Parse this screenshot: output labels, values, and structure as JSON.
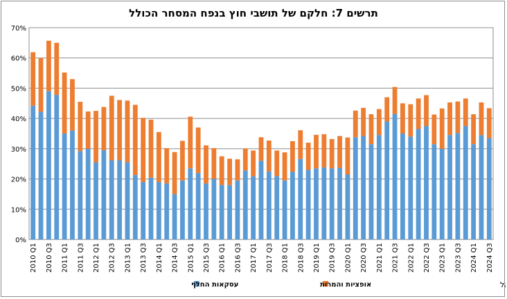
{
  "chart_data": {
    "type": "bar",
    "stacked": true,
    "title": "תרשים 7: חלקם של תושבי חוץ בנפח המסחר הכולל",
    "xlabel": "",
    "ylabel": "",
    "ylim": [
      0,
      70
    ],
    "y_ticks": [
      "0%",
      "10%",
      "20%",
      "30%",
      "40%",
      "50%",
      "60%",
      "70%"
    ],
    "grid": true,
    "legend_position": "bottom",
    "categories": [
      "2010 Q1",
      "2010 Q2",
      "2010 Q3",
      "2010 Q4",
      "2011 Q1",
      "2011 Q2",
      "2011 Q3",
      "2011 Q4",
      "2012 Q1",
      "2012 Q2",
      "2012 Q3",
      "2012 Q4",
      "2013 Q1",
      "2013 Q2",
      "2013 Q3",
      "2013 Q4",
      "2014 Q1",
      "2014 Q2",
      "2014 Q3",
      "2014 Q4",
      "2015 Q1",
      "2015 Q2",
      "2015 Q3",
      "2015 Q4",
      "2016 Q1",
      "2016 Q2",
      "2016 Q3",
      "2016 Q4",
      "2017 Q1",
      "2017 Q2",
      "2017 Q3",
      "2017 Q4",
      "2018 Q1",
      "2018 Q2",
      "2018 Q3",
      "2018 Q4",
      "2019 Q1",
      "2019 Q2",
      "2019 Q3",
      "2019 Q4",
      "2020 Q1",
      "2020 Q2",
      "2020 Q3",
      "2020 Q4",
      "2021 Q1",
      "2021 Q2",
      "2021 Q3",
      "2021 Q4",
      "2022 Q1",
      "2022 Q2",
      "2022 Q3",
      "2022 Q4",
      "2023 Q1",
      "2023 Q2",
      "2023 Q3",
      "2023 Q4",
      "2024 Q1",
      "2024 Q2",
      "2024 Q3"
    ],
    "x_tick_labels": [
      "2010 Q1",
      "2010 Q3",
      "2011 Q1",
      "2011 Q3",
      "2012 Q1",
      "2012 Q3",
      "2013 Q1",
      "2013 Q3",
      "2014 Q1",
      "2014 Q3",
      "2015 Q1",
      "2015 Q3",
      "2016 Q1",
      "2016 Q3",
      "2017 Q1",
      "2017 Q3",
      "2018 Q1",
      "2018 Q3",
      "2019 Q1",
      "2019 Q3",
      "2020 Q1",
      "2020 Q3",
      "2021 Q1",
      "2021 Q3",
      "2022 Q1",
      "2022 Q3",
      "2023 Q1",
      "2023 Q3",
      "2024 Q1",
      "2024 Q3"
    ],
    "series": [
      {
        "name": "עסקאות החלף",
        "color": "#5b9bd5",
        "values": [
          44.2,
          42.2,
          49.0,
          47.8,
          35.0,
          36.0,
          29.2,
          30.0,
          25.5,
          29.5,
          26.2,
          26.2,
          25.5,
          21.3,
          19.0,
          20.4,
          19.0,
          18.5,
          15.0,
          19.5,
          23.5,
          22.0,
          18.5,
          20.0,
          18.0,
          18.0,
          19.5,
          22.8,
          20.9,
          26.0,
          22.5,
          21.0,
          19.5,
          22.4,
          26.6,
          23.0,
          23.5,
          23.8,
          23.5,
          23.7,
          21.5,
          33.8,
          34.2,
          31.5,
          34.5,
          39.0,
          41.5,
          35.0,
          34.0,
          36.5,
          37.5,
          31.5,
          30.0,
          34.5,
          35.2,
          37.5,
          31.5,
          34.5,
          33.5
        ]
      },
      {
        "name": "אופציות והמרות",
        "color": "#ed7d31",
        "values": [
          17.7,
          17.8,
          16.7,
          17.2,
          20.2,
          17.0,
          16.3,
          12.3,
          17.0,
          14.3,
          21.3,
          19.9,
          20.4,
          23.2,
          21.2,
          19.2,
          16.5,
          11.7,
          13.9,
          13.1,
          17.1,
          15.0,
          12.6,
          10.2,
          9.5,
          8.7,
          7.0,
          7.3,
          8.5,
          7.8,
          10.2,
          8.4,
          9.3,
          10.1,
          9.5,
          9.0,
          11.1,
          11.0,
          9.7,
          10.5,
          12.2,
          8.8,
          9.3,
          9.9,
          8.6,
          8.0,
          8.9,
          10.0,
          10.7,
          10.1,
          10.2,
          9.8,
          13.3,
          10.8,
          10.4,
          9.1,
          9.9,
          10.8,
          9.9
        ]
      }
    ],
    "source": "מקור: עיבודים לדיווחים לבנק ישראל"
  }
}
